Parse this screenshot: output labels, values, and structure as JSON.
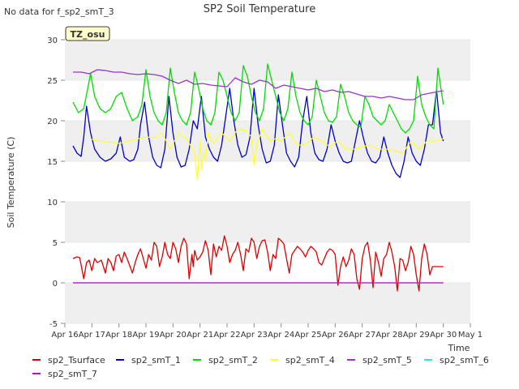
{
  "chart_data": {
    "type": "line",
    "title": "SP2 Soil Temperature",
    "no_data_note": "No data for f_sp2_smT_3",
    "site_tag": "TZ_osu",
    "xlabel": "Time",
    "ylabel": "Soil Temperature (C)",
    "xlim": [
      16,
      31
    ],
    "ylim": [
      -5,
      30
    ],
    "y_ticks": [
      -5,
      0,
      5,
      10,
      15,
      20,
      25,
      30
    ],
    "x_ticks": [
      {
        "value": 16,
        "label": "Apr 16"
      },
      {
        "value": 17,
        "label": "Apr 17"
      },
      {
        "value": 18,
        "label": "Apr 18"
      },
      {
        "value": 19,
        "label": "Apr 19"
      },
      {
        "value": 20,
        "label": "Apr 20"
      },
      {
        "value": 21,
        "label": "Apr 21"
      },
      {
        "value": 22,
        "label": "Apr 22"
      },
      {
        "value": 23,
        "label": "Apr 23"
      },
      {
        "value": 24,
        "label": "Apr 24"
      },
      {
        "value": 25,
        "label": "Apr 25"
      },
      {
        "value": 26,
        "label": "Apr 26"
      },
      {
        "value": 27,
        "label": "Apr 27"
      },
      {
        "value": 28,
        "label": "Apr 28"
      },
      {
        "value": 29,
        "label": "Apr 29"
      },
      {
        "value": 30,
        "label": "Apr 30"
      },
      {
        "value": 31,
        "label": "May 1"
      }
    ],
    "grid": "horizontal gray bands",
    "legend_position": "bottom",
    "series": [
      {
        "name": "sp2_Tsurface",
        "color": "#dd0000",
        "x": [
          16.3,
          16.45,
          16.55,
          16.7,
          16.8,
          16.9,
          17.0,
          17.1,
          17.2,
          17.35,
          17.5,
          17.6,
          17.7,
          17.8,
          17.9,
          18.0,
          18.1,
          18.2,
          18.3,
          18.5,
          18.6,
          18.7,
          18.8,
          18.9,
          19.0,
          19.1,
          19.2,
          19.3,
          19.4,
          19.5,
          19.6,
          19.7,
          19.8,
          19.9,
          20.0,
          20.1,
          20.2,
          20.3,
          20.4,
          20.5,
          20.6,
          20.7,
          20.75,
          20.8,
          20.9,
          21.0,
          21.1,
          21.2,
          21.3,
          21.4,
          21.5,
          21.6,
          21.7,
          21.8,
          21.9,
          22.0,
          22.1,
          22.2,
          22.3,
          22.4,
          22.5,
          22.6,
          22.7,
          22.8,
          22.9,
          23.0,
          23.1,
          23.2,
          23.3,
          23.4,
          23.5,
          23.6,
          23.7,
          23.8,
          23.9,
          24.0,
          24.1,
          24.2,
          24.3,
          24.4,
          24.5,
          24.6,
          24.7,
          24.8,
          24.9,
          25.0,
          25.1,
          25.2,
          25.3,
          25.4,
          25.5,
          25.6,
          25.7,
          25.8,
          25.9,
          26.0,
          26.1,
          26.2,
          26.3,
          26.4,
          26.5,
          26.6,
          26.7,
          26.8,
          26.9,
          27.0,
          27.1,
          27.2,
          27.3,
          27.4,
          27.5,
          27.6,
          27.7,
          27.8,
          27.9,
          28.0,
          28.1,
          28.2,
          28.3,
          28.4,
          28.5,
          28.6,
          28.7,
          28.8,
          28.9,
          29.0,
          29.1,
          29.2,
          29.3,
          29.4,
          29.5,
          29.6,
          29.7,
          29.8,
          29.9,
          30.0
        ],
        "y": [
          3.0,
          3.2,
          3.1,
          0.5,
          2.5,
          2.8,
          1.5,
          3.0,
          2.5,
          2.8,
          1.2,
          3.0,
          2.5,
          1.5,
          3.3,
          3.5,
          2.5,
          3.8,
          3.0,
          1.2,
          2.5,
          3.5,
          4.2,
          3.0,
          1.8,
          3.5,
          2.8,
          5.0,
          4.5,
          2.0,
          3.2,
          5.0,
          3.5,
          3.0,
          5.0,
          4.2,
          2.5,
          4.5,
          5.5,
          4.8,
          0.5,
          3.5,
          2.0,
          4.0,
          2.8,
          3.2,
          3.8,
          5.2,
          4.0,
          1.0,
          4.8,
          3.2,
          4.5,
          4.0,
          5.8,
          4.5,
          2.5,
          3.5,
          4.0,
          5.0,
          3.5,
          1.5,
          4.2,
          3.8,
          5.5,
          5.0,
          3.0,
          4.5,
          5.2,
          5.3,
          3.8,
          1.5,
          3.5,
          3.0,
          5.5,
          5.2,
          4.8,
          3.0,
          1.2,
          3.5,
          4.0,
          4.5,
          4.2,
          3.8,
          3.2,
          4.0,
          4.5,
          4.2,
          3.8,
          2.5,
          2.2,
          3.0,
          3.8,
          4.2,
          4.0,
          3.5,
          -0.3,
          2.0,
          3.2,
          2.0,
          2.8,
          4.2,
          3.5,
          0.5,
          -0.8,
          3.0,
          4.5,
          5.0,
          2.8,
          -0.6,
          3.8,
          2.5,
          0.8,
          3.0,
          3.5,
          5.0,
          3.8,
          2.0,
          -1.0,
          3.0,
          2.8,
          1.5,
          2.5,
          4.5,
          3.5,
          1.0,
          -1.0,
          3.0,
          4.8,
          3.5,
          1.0,
          2.0,
          2.0,
          2.0,
          2.0,
          2.0
        ]
      },
      {
        "name": "sp2_smT_1",
        "color": "#0000cc",
        "x": [
          16.3,
          16.45,
          16.6,
          16.7,
          16.8,
          16.95,
          17.1,
          17.3,
          17.5,
          17.7,
          17.9,
          18.05,
          18.2,
          18.4,
          18.55,
          18.7,
          18.8,
          18.95,
          19.1,
          19.25,
          19.4,
          19.55,
          19.7,
          19.85,
          20.0,
          20.15,
          20.3,
          20.45,
          20.6,
          20.75,
          20.9,
          21.05,
          21.2,
          21.35,
          21.5,
          21.65,
          21.8,
          21.95,
          22.1,
          22.25,
          22.4,
          22.55,
          22.7,
          22.85,
          23.0,
          23.15,
          23.3,
          23.45,
          23.6,
          23.75,
          23.9,
          24.05,
          24.2,
          24.35,
          24.5,
          24.65,
          24.8,
          24.95,
          25.1,
          25.25,
          25.4,
          25.55,
          25.7,
          25.85,
          26.0,
          26.15,
          26.3,
          26.45,
          26.6,
          26.75,
          26.9,
          27.05,
          27.2,
          27.35,
          27.5,
          27.65,
          27.8,
          27.95,
          28.1,
          28.25,
          28.4,
          28.55,
          28.7,
          28.85,
          29.0,
          29.15,
          29.3,
          29.45,
          29.6,
          29.75,
          29.9,
          30.0
        ],
        "y": [
          16.9,
          16.0,
          15.6,
          18.0,
          21.8,
          18.5,
          16.5,
          15.5,
          15.0,
          15.3,
          16.0,
          18.0,
          15.5,
          15.0,
          15.2,
          16.5,
          19.5,
          22.3,
          18.0,
          15.5,
          14.5,
          14.2,
          16.5,
          23.0,
          18.5,
          15.5,
          14.3,
          14.5,
          16.5,
          20.0,
          19.0,
          23.0,
          18.0,
          16.5,
          15.5,
          15.0,
          17.0,
          20.5,
          24.0,
          20.0,
          17.0,
          15.5,
          15.8,
          18.0,
          24.0,
          19.5,
          16.5,
          14.8,
          15.0,
          17.0,
          23.2,
          19.5,
          16.0,
          15.0,
          14.3,
          15.5,
          20.0,
          23.0,
          18.5,
          16.0,
          15.2,
          15.0,
          16.5,
          19.5,
          17.5,
          16.0,
          15.0,
          14.8,
          15.0,
          17.5,
          20.0,
          17.8,
          16.0,
          15.0,
          14.8,
          15.5,
          18.0,
          16.0,
          14.5,
          13.5,
          13.0,
          15.0,
          18.0,
          16.0,
          15.0,
          14.5,
          16.5,
          19.5,
          19.5,
          23.8,
          18.5,
          17.5
        ]
      },
      {
        "name": "sp2_smT_2",
        "color": "#00dd00",
        "x": [
          16.3,
          16.5,
          16.7,
          16.95,
          17.1,
          17.3,
          17.5,
          17.7,
          17.9,
          18.1,
          18.3,
          18.5,
          18.7,
          18.85,
          19.0,
          19.15,
          19.3,
          19.45,
          19.6,
          19.75,
          19.9,
          20.05,
          20.2,
          20.35,
          20.5,
          20.65,
          20.8,
          20.95,
          21.1,
          21.25,
          21.4,
          21.55,
          21.7,
          21.85,
          22.0,
          22.15,
          22.3,
          22.45,
          22.6,
          22.75,
          22.9,
          23.05,
          23.2,
          23.35,
          23.5,
          23.65,
          23.8,
          23.95,
          24.1,
          24.25,
          24.4,
          24.55,
          24.7,
          24.85,
          25.0,
          25.15,
          25.3,
          25.45,
          25.6,
          25.75,
          25.9,
          26.05,
          26.2,
          26.35,
          26.5,
          26.65,
          26.8,
          26.95,
          27.1,
          27.25,
          27.4,
          27.55,
          27.7,
          27.85,
          28.0,
          28.15,
          28.3,
          28.45,
          28.6,
          28.75,
          28.9,
          29.05,
          29.2,
          29.35,
          29.5,
          29.65,
          29.8,
          30.0
        ],
        "y": [
          22.3,
          21.0,
          21.5,
          25.8,
          23.0,
          21.5,
          21.0,
          21.5,
          23.0,
          23.5,
          21.5,
          20.0,
          20.5,
          22.0,
          26.3,
          23.0,
          21.0,
          20.0,
          19.5,
          21.0,
          26.5,
          23.5,
          21.0,
          20.0,
          19.5,
          21.0,
          26.0,
          24.0,
          21.5,
          20.0,
          19.5,
          21.0,
          26.0,
          25.0,
          23.0,
          21.0,
          20.0,
          21.0,
          26.8,
          25.5,
          23.0,
          21.0,
          20.0,
          21.5,
          27.0,
          25.0,
          23.0,
          21.0,
          20.0,
          21.5,
          26.0,
          23.0,
          21.0,
          20.0,
          19.5,
          20.5,
          25.0,
          23.0,
          21.0,
          20.0,
          19.8,
          20.5,
          24.5,
          23.0,
          21.0,
          20.0,
          19.5,
          19.2,
          23.0,
          22.0,
          20.5,
          20.0,
          19.5,
          20.0,
          22.0,
          21.0,
          20.0,
          19.0,
          18.5,
          19.0,
          20.0,
          25.5,
          22.0,
          20.5,
          19.5,
          19.0,
          26.5,
          22.0
        ]
      },
      {
        "name": "sp2_smT_4",
        "color": "#ffff33",
        "x": [
          17.0,
          17.5,
          18.0,
          18.5,
          19.0,
          19.3,
          19.6,
          19.9,
          20.2,
          20.5,
          20.8,
          20.9,
          21.0,
          21.05,
          21.1,
          21.2,
          21.3,
          21.5,
          21.8,
          22.1,
          22.4,
          22.7,
          22.9,
          23.0,
          23.1,
          23.3,
          23.6,
          23.8,
          24.0,
          24.3,
          24.6,
          24.9,
          25.2,
          25.5,
          25.8,
          26.1,
          26.4,
          26.7,
          27.0,
          27.3,
          27.6,
          27.9,
          28.2,
          28.5,
          28.8,
          29.1,
          29.4,
          29.7,
          30.0
        ],
        "y": [
          17.7,
          17.4,
          17.2,
          17.6,
          18.0,
          17.9,
          18.5,
          16.5,
          18.5,
          17.8,
          16.0,
          12.7,
          17.5,
          14.0,
          16.0,
          15.0,
          18.5,
          17.2,
          18.5,
          17.5,
          19.0,
          18.8,
          18.0,
          14.5,
          17.0,
          19.0,
          17.5,
          17.8,
          17.5,
          18.5,
          17.0,
          17.0,
          18.0,
          17.5,
          16.8,
          17.5,
          16.5,
          16.5,
          16.8,
          17.0,
          16.5,
          16.5,
          16.3,
          16.0,
          17.5,
          16.5,
          17.5,
          17.5,
          17.8
        ]
      },
      {
        "name": "sp2_smT_5",
        "color": "#9933cc",
        "x": [
          16.3,
          16.6,
          16.9,
          17.2,
          17.5,
          17.8,
          18.1,
          18.4,
          18.7,
          19.0,
          19.3,
          19.6,
          19.9,
          20.2,
          20.5,
          20.8,
          21.1,
          21.4,
          21.7,
          22.0,
          22.3,
          22.6,
          22.9,
          23.2,
          23.5,
          23.8,
          24.1,
          24.4,
          24.7,
          25.0,
          25.3,
          25.6,
          25.9,
          26.2,
          26.5,
          26.8,
          27.1,
          27.4,
          27.7,
          28.0,
          28.3,
          28.6,
          28.9,
          29.2,
          29.5,
          29.8,
          30.0
        ],
        "y": [
          26.0,
          26.0,
          25.8,
          26.3,
          26.2,
          26.0,
          26.0,
          25.8,
          25.7,
          25.8,
          25.7,
          25.5,
          25.0,
          24.6,
          25.0,
          24.5,
          24.6,
          24.4,
          24.3,
          24.2,
          25.3,
          24.8,
          24.5,
          25.0,
          24.8,
          24.0,
          24.4,
          24.2,
          24.0,
          23.8,
          24.0,
          23.6,
          23.8,
          23.5,
          23.6,
          23.3,
          23.0,
          23.0,
          22.8,
          23.0,
          22.8,
          22.6,
          22.6,
          23.2,
          23.4,
          23.6,
          23.7
        ]
      },
      {
        "name": "sp2_smT_6",
        "color": "#33ddee",
        "x": [
          16.3,
          30.0
        ],
        "y": [
          0.0,
          0.0
        ]
      },
      {
        "name": "sp2_smT_7",
        "color": "#cc00cc",
        "x": [
          16.3,
          30.0
        ],
        "y": [
          0.0,
          0.0
        ]
      }
    ]
  }
}
